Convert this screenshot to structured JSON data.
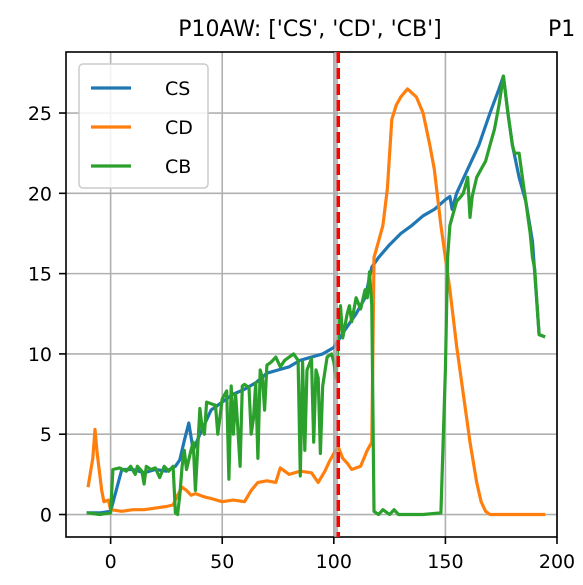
{
  "chart_data": {
    "type": "line",
    "title": "P10AW: ['CS', 'CD', 'CB']",
    "title_right_fragment": "P1",
    "xlabel": "",
    "ylabel": "",
    "xlim": [
      -20,
      200
    ],
    "ylim": [
      -1.4,
      28.8
    ],
    "xticks": [
      0,
      50,
      100,
      150,
      200
    ],
    "yticks": [
      0,
      5,
      10,
      15,
      20,
      25
    ],
    "grid": true,
    "legend_position": "top-left",
    "vline": {
      "x": 102,
      "color": "#ff0000",
      "style": "dashed"
    },
    "gray_vline": {
      "x": 101,
      "color": "#aaaaaa"
    },
    "series": [
      {
        "name": "CS",
        "color": "#1f77b4",
        "points": [
          [
            -10,
            0.1
          ],
          [
            -5,
            0.1
          ],
          [
            0,
            0.2
          ],
          [
            5,
            2.8
          ],
          [
            10,
            2.8
          ],
          [
            15,
            2.6
          ],
          [
            20,
            2.8
          ],
          [
            25,
            2.7
          ],
          [
            29,
            3.0
          ],
          [
            31,
            3.4
          ],
          [
            33,
            4.6
          ],
          [
            35,
            5.7
          ],
          [
            37,
            4.0
          ],
          [
            40,
            5.0
          ],
          [
            45,
            6.5
          ],
          [
            50,
            7.0
          ],
          [
            55,
            7.5
          ],
          [
            60,
            7.8
          ],
          [
            65,
            8.2
          ],
          [
            70,
            8.8
          ],
          [
            75,
            9.0
          ],
          [
            80,
            9.2
          ],
          [
            85,
            9.6
          ],
          [
            90,
            9.8
          ],
          [
            95,
            10.0
          ],
          [
            100,
            10.4
          ],
          [
            105,
            11.5
          ],
          [
            110,
            12.5
          ],
          [
            114,
            13.5
          ],
          [
            117,
            15.4
          ],
          [
            120,
            16.0
          ],
          [
            125,
            16.8
          ],
          [
            130,
            17.5
          ],
          [
            135,
            18.0
          ],
          [
            140,
            18.6
          ],
          [
            145,
            19.0
          ],
          [
            150,
            19.6
          ],
          [
            152,
            19.8
          ],
          [
            153,
            19.0
          ],
          [
            155,
            20.0
          ],
          [
            160,
            21.5
          ],
          [
            165,
            23.0
          ],
          [
            170,
            25.0
          ],
          [
            174,
            26.5
          ],
          [
            176,
            27.3
          ],
          [
            178,
            25.0
          ],
          [
            180,
            23.0
          ],
          [
            183,
            21.0
          ],
          [
            186,
            19.5
          ],
          [
            189,
            17.0
          ],
          [
            192,
            11.2
          ],
          [
            194,
            11.1
          ]
        ]
      },
      {
        "name": "CD",
        "color": "#ff7f0e",
        "points": [
          [
            -10,
            1.8
          ],
          [
            -8,
            3.5
          ],
          [
            -7,
            5.3
          ],
          [
            -6,
            3.8
          ],
          [
            -4,
            1.5
          ],
          [
            -3,
            0.8
          ],
          [
            -1,
            0.9
          ],
          [
            0,
            0.3
          ],
          [
            5,
            0.2
          ],
          [
            10,
            0.3
          ],
          [
            15,
            0.3
          ],
          [
            20,
            0.4
          ],
          [
            25,
            0.5
          ],
          [
            28,
            0.6
          ],
          [
            30,
            1.2
          ],
          [
            32,
            1.7
          ],
          [
            34,
            1.5
          ],
          [
            36,
            1.2
          ],
          [
            38,
            1.3
          ],
          [
            42,
            1.1
          ],
          [
            45,
            1.0
          ],
          [
            50,
            0.8
          ],
          [
            55,
            0.9
          ],
          [
            60,
            0.8
          ],
          [
            63,
            1.5
          ],
          [
            66,
            2.0
          ],
          [
            70,
            2.1
          ],
          [
            74,
            2.0
          ],
          [
            76,
            2.9
          ],
          [
            80,
            2.5
          ],
          [
            85,
            2.7
          ],
          [
            90,
            2.6
          ],
          [
            93,
            2.0
          ],
          [
            96,
            2.7
          ],
          [
            98,
            3.3
          ],
          [
            100,
            3.8
          ],
          [
            102,
            4.2
          ],
          [
            104,
            3.5
          ],
          [
            106,
            3.2
          ],
          [
            108,
            2.8
          ],
          [
            112,
            3.0
          ],
          [
            115,
            4.0
          ],
          [
            117,
            4.5
          ],
          [
            118,
            16.0
          ],
          [
            120,
            17.0
          ],
          [
            122,
            18.0
          ],
          [
            124,
            20.3
          ],
          [
            126,
            24.6
          ],
          [
            128,
            25.5
          ],
          [
            130,
            26.0
          ],
          [
            133,
            26.5
          ],
          [
            137,
            26.0
          ],
          [
            140,
            25.0
          ],
          [
            143,
            23.0
          ],
          [
            145,
            21.5
          ],
          [
            148,
            18.0
          ],
          [
            150,
            16.0
          ],
          [
            152,
            14.0
          ],
          [
            155,
            10.5
          ],
          [
            158,
            7.5
          ],
          [
            161,
            4.5
          ],
          [
            164,
            2.0
          ],
          [
            166,
            0.8
          ],
          [
            168,
            0.2
          ],
          [
            170,
            0.0
          ],
          [
            180,
            0.0
          ],
          [
            194,
            0.0
          ]
        ]
      },
      {
        "name": "CB",
        "color": "#2ca02c",
        "points": [
          [
            -10,
            0.1
          ],
          [
            -5,
            0.0
          ],
          [
            0,
            0.1
          ],
          [
            1,
            2.8
          ],
          [
            4,
            2.9
          ],
          [
            7,
            2.7
          ],
          [
            9,
            3.0
          ],
          [
            11,
            2.5
          ],
          [
            12,
            3.0
          ],
          [
            14,
            2.7
          ],
          [
            15,
            1.9
          ],
          [
            16,
            3.0
          ],
          [
            18,
            2.8
          ],
          [
            20,
            2.9
          ],
          [
            22,
            2.3
          ],
          [
            24,
            3.0
          ],
          [
            26,
            2.7
          ],
          [
            28,
            3.0
          ],
          [
            29,
            0.1
          ],
          [
            30,
            0.0
          ],
          [
            31,
            1.2
          ],
          [
            32,
            3.0
          ],
          [
            33,
            4.0
          ],
          [
            34,
            2.8
          ],
          [
            36,
            4.0
          ],
          [
            37,
            4.5
          ],
          [
            38,
            1.5
          ],
          [
            40,
            6.6
          ],
          [
            41,
            5.4
          ],
          [
            42,
            5.0
          ],
          [
            43,
            7.0
          ],
          [
            45,
            6.9
          ],
          [
            47,
            6.8
          ],
          [
            48,
            5.0
          ],
          [
            50,
            7.2
          ],
          [
            52,
            7.7
          ],
          [
            53,
            2.2
          ],
          [
            54,
            8.0
          ],
          [
            55,
            5.0
          ],
          [
            56,
            7.5
          ],
          [
            57,
            5.4
          ],
          [
            58,
            3.0
          ],
          [
            59,
            8.0
          ],
          [
            60,
            8.1
          ],
          [
            62,
            7.9
          ],
          [
            63,
            5.0
          ],
          [
            64,
            6.0
          ],
          [
            65,
            8.2
          ],
          [
            66,
            3.5
          ],
          [
            67,
            9.0
          ],
          [
            68,
            8.5
          ],
          [
            69,
            6.5
          ],
          [
            70,
            9.3
          ],
          [
            72,
            9.5
          ],
          [
            74,
            9.8
          ],
          [
            76,
            9.2
          ],
          [
            78,
            9.6
          ],
          [
            80,
            9.8
          ],
          [
            82,
            10.0
          ],
          [
            84,
            9.6
          ],
          [
            85,
            2.4
          ],
          [
            86,
            9.5
          ],
          [
            87,
            4.0
          ],
          [
            88,
            9.0
          ],
          [
            90,
            9.7
          ],
          [
            91,
            4.5
          ],
          [
            92,
            9.0
          ],
          [
            93,
            8.5
          ],
          [
            94,
            3.8
          ],
          [
            95,
            8.0
          ],
          [
            97,
            9.8
          ],
          [
            99,
            10.0
          ],
          [
            100,
            9.5
          ],
          [
            101,
            8.5
          ],
          [
            102,
            11.0
          ],
          [
            103,
            13.0
          ],
          [
            104,
            11.0
          ],
          [
            106,
            12.5
          ],
          [
            107,
            13.0
          ],
          [
            108,
            12.0
          ],
          [
            110,
            13.5
          ],
          [
            112,
            12.8
          ],
          [
            114,
            14.0
          ],
          [
            115,
            13.5
          ],
          [
            116,
            15.1
          ],
          [
            117,
            13.0
          ],
          [
            118,
            0.2
          ],
          [
            119,
            0.1
          ],
          [
            120,
            0.0
          ],
          [
            122,
            0.3
          ],
          [
            124,
            0.1
          ],
          [
            125,
            0.0
          ],
          [
            127,
            0.3
          ],
          [
            129,
            0.0
          ],
          [
            140,
            0.0
          ],
          [
            148,
            0.1
          ],
          [
            150,
            9.0
          ],
          [
            151,
            16.0
          ],
          [
            152,
            18.0
          ],
          [
            153,
            18.5
          ],
          [
            155,
            19.5
          ],
          [
            157,
            19.8
          ],
          [
            158,
            20.0
          ],
          [
            160,
            21.0
          ],
          [
            161,
            18.5
          ],
          [
            162,
            19.8
          ],
          [
            164,
            21.0
          ],
          [
            166,
            21.5
          ],
          [
            168,
            22.0
          ],
          [
            170,
            23.0
          ],
          [
            172,
            24.0
          ],
          [
            174,
            25.5
          ],
          [
            176,
            27.3
          ],
          [
            178,
            25.0
          ],
          [
            180,
            23.0
          ],
          [
            181,
            22.5
          ],
          [
            183,
            22.5
          ],
          [
            185,
            20.5
          ],
          [
            186,
            19.5
          ],
          [
            188,
            17.5
          ],
          [
            189,
            16.0
          ],
          [
            190,
            15.3
          ],
          [
            192,
            11.2
          ],
          [
            194,
            11.1
          ]
        ]
      }
    ]
  }
}
